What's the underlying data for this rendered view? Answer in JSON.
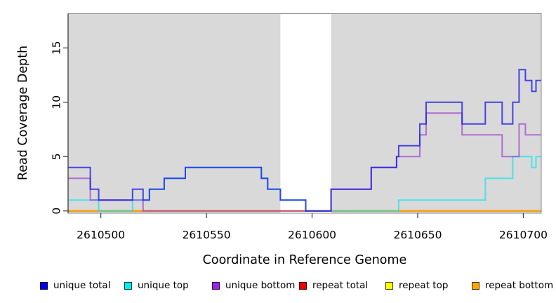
{
  "chart_data": {
    "type": "line",
    "subtype": "step-after",
    "title": "",
    "xlabel": "Coordinate in Reference Genome",
    "ylabel": "Read Coverage Depth",
    "x_range": [
      2610484.5,
      2610708.5
    ],
    "y_range": [
      -0.21,
      18.15
    ],
    "grid": false,
    "legend_position": "bottom",
    "page_background": "#ffffff",
    "plot_background": "#d9d9d9",
    "box_color": "#8a8a8a",
    "axis_color": "#3a3a3a",
    "highlight_band": {
      "from": 2610585,
      "to": 2610609,
      "color": "#ffffff"
    },
    "x_ticks": [
      {
        "value": 2610500,
        "label": "2610500"
      },
      {
        "value": 2610550,
        "label": "2610550"
      },
      {
        "value": 2610600,
        "label": "2610600"
      },
      {
        "value": 2610650,
        "label": "2610650"
      },
      {
        "value": 2610700,
        "label": "2610700"
      }
    ],
    "y_ticks": [
      {
        "value": 0,
        "label": "0"
      },
      {
        "value": 5,
        "label": "5"
      },
      {
        "value": 10,
        "label": "10"
      },
      {
        "value": 15,
        "label": "15"
      }
    ],
    "draw_order": [
      "repeat_total",
      "repeat_top",
      "repeat_bottom",
      "unique_top",
      "unique_bottom",
      "unique_total"
    ],
    "series": [
      {
        "id": "unique_total",
        "label": "unique total",
        "swatch": "#0000EE",
        "stroke": "rgba(26,26,230,0.78)",
        "points": [
          [
            2610484.5,
            4
          ],
          [
            2610495,
            2
          ],
          [
            2610499,
            1
          ],
          [
            2610515,
            2
          ],
          [
            2610520,
            1
          ],
          [
            2610523,
            2
          ],
          [
            2610530,
            3
          ],
          [
            2610540,
            4
          ],
          [
            2610576,
            3
          ],
          [
            2610579,
            2
          ],
          [
            2610585,
            1
          ],
          [
            2610597,
            0
          ],
          [
            2610609,
            2
          ],
          [
            2610628,
            4
          ],
          [
            2610640,
            5
          ],
          [
            2610641,
            6
          ],
          [
            2610651,
            8
          ],
          [
            2610654,
            10
          ],
          [
            2610671,
            8
          ],
          [
            2610682,
            10
          ],
          [
            2610690,
            8
          ],
          [
            2610695,
            10
          ],
          [
            2610698,
            13
          ],
          [
            2610701,
            12
          ],
          [
            2610704,
            11
          ],
          [
            2610706,
            12
          ]
        ]
      },
      {
        "id": "unique_top",
        "label": "unique top",
        "swatch": "#00EEEE",
        "stroke": "rgba(0,229,238,0.65)",
        "points": [
          [
            2610484.5,
            1
          ],
          [
            2610499,
            0
          ],
          [
            2610515,
            1
          ],
          [
            2610523,
            2
          ],
          [
            2610530,
            3
          ],
          [
            2610540,
            4
          ],
          [
            2610576,
            3
          ],
          [
            2610579,
            2
          ],
          [
            2610585,
            1
          ],
          [
            2610597,
            0
          ],
          [
            2610641,
            1
          ],
          [
            2610682,
            3
          ],
          [
            2610695,
            5
          ],
          [
            2610704,
            4
          ],
          [
            2610706,
            5
          ]
        ]
      },
      {
        "id": "unique_bottom",
        "label": "unique bottom",
        "swatch": "#A020F0",
        "stroke": "rgba(154,50,205,0.65)",
        "points": [
          [
            2610484.5,
            3
          ],
          [
            2610495,
            1
          ],
          [
            2610520,
            0
          ],
          [
            2610609,
            2
          ],
          [
            2610628,
            4
          ],
          [
            2610640,
            5
          ],
          [
            2610651,
            7
          ],
          [
            2610654,
            9
          ],
          [
            2610671,
            7
          ],
          [
            2610690,
            5
          ],
          [
            2610698,
            8
          ],
          [
            2610701,
            7
          ]
        ]
      },
      {
        "id": "repeat_total",
        "label": "repeat total",
        "swatch": "#EE0000",
        "stroke": "rgba(205,0,0,0.85)",
        "points": [
          [
            2610484.5,
            0
          ]
        ]
      },
      {
        "id": "repeat_top",
        "label": "repeat top",
        "swatch": "#FFFF00",
        "stroke": "rgba(238,238,0,0.85)",
        "points": [
          [
            2610484.5,
            0
          ]
        ]
      },
      {
        "id": "repeat_bottom",
        "label": "repeat bottom",
        "swatch": "#FFA500",
        "stroke": "rgba(255,152,0,0.92)",
        "points": [
          [
            2610484.5,
            0
          ]
        ]
      }
    ]
  }
}
